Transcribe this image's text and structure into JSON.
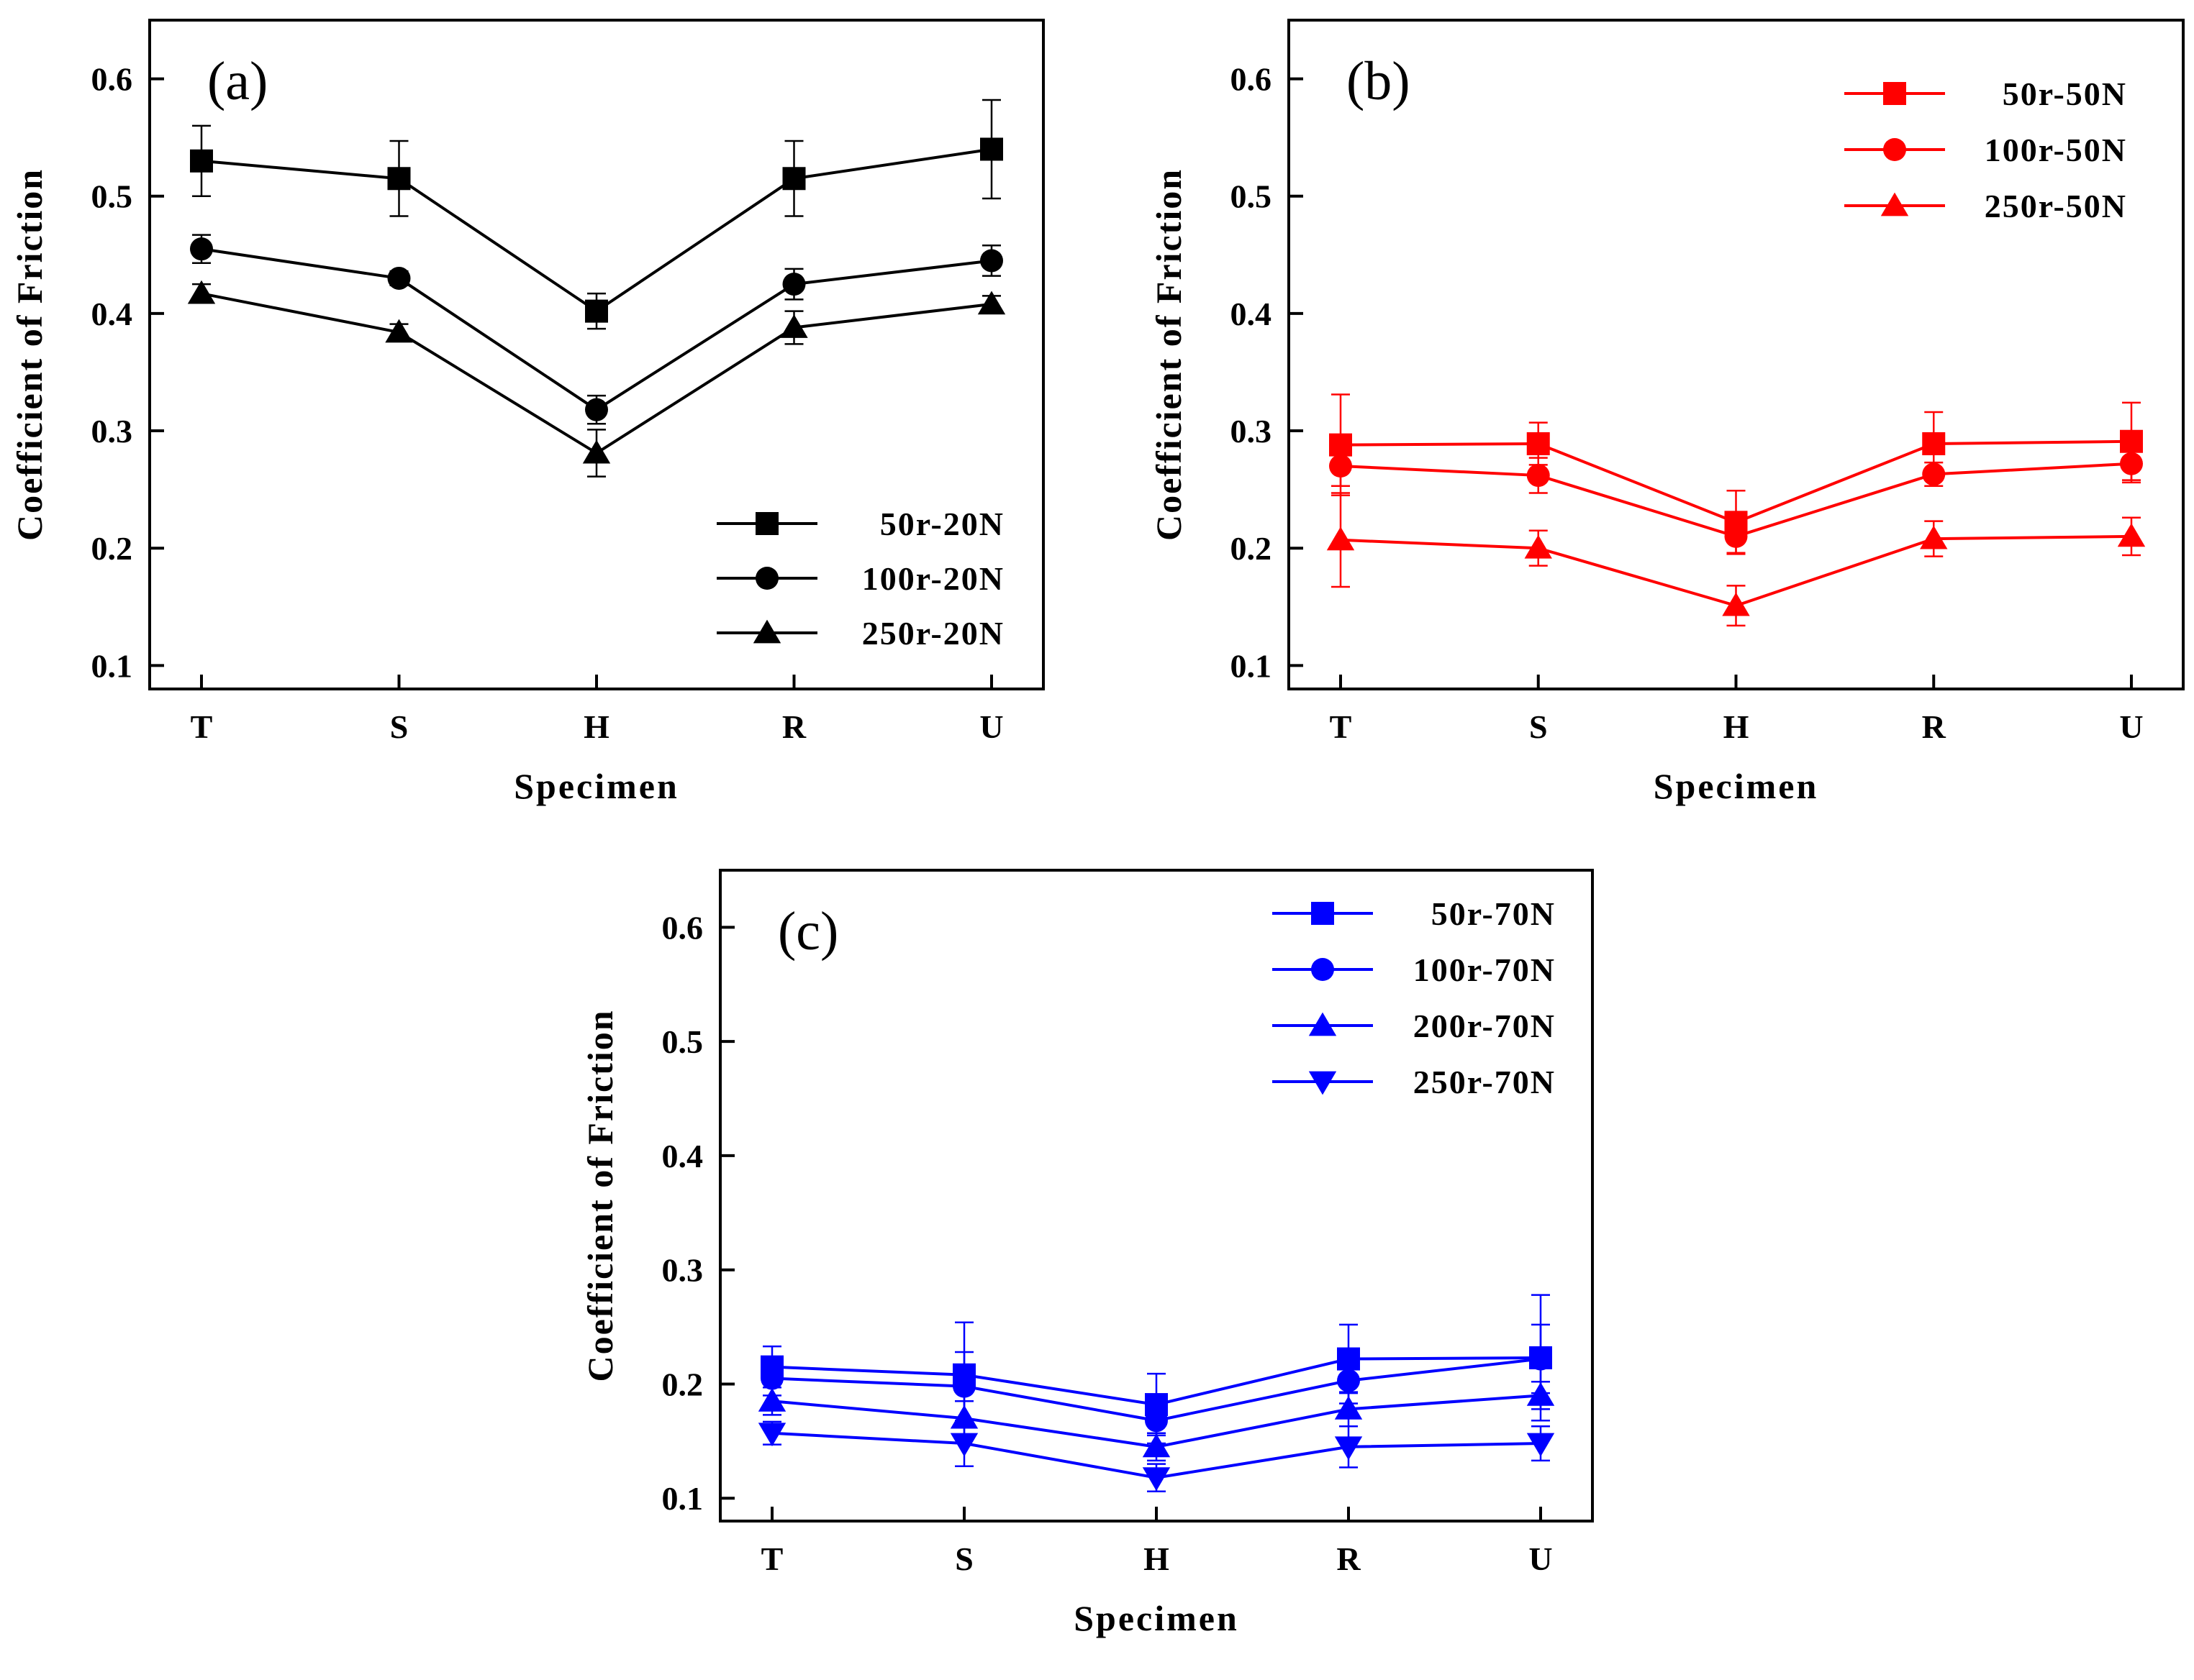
{
  "chart_data": [
    {
      "type": "line",
      "panel": "(a)",
      "xlabel": "Specimen",
      "ylabel": "Coefficient of Friction",
      "categories": [
        "T",
        "S",
        "H",
        "R",
        "U"
      ],
      "yticks": [
        "0.1",
        "0.2",
        "0.3",
        "0.4",
        "0.5",
        "0.6"
      ],
      "ylim": [
        0.08,
        0.65
      ],
      "grid": false,
      "legend_position": "bottom-right",
      "color": "#000000",
      "series": [
        {
          "name": "50r-20N",
          "marker": "square",
          "values": [
            0.53,
            0.515,
            0.402,
            0.515,
            0.54
          ],
          "errors": [
            0.03,
            0.032,
            0.015,
            0.032,
            0.042
          ]
        },
        {
          "name": "100r-20N",
          "marker": "circle",
          "values": [
            0.455,
            0.43,
            0.318,
            0.425,
            0.445
          ],
          "errors": [
            0.012,
            0.006,
            0.012,
            0.013,
            0.013
          ]
        },
        {
          "name": "250r-20N",
          "marker": "triangle-up",
          "values": [
            0.417,
            0.384,
            0.281,
            0.388,
            0.408
          ],
          "errors": [
            0.008,
            0.007,
            0.02,
            0.014,
            0.007
          ]
        }
      ]
    },
    {
      "type": "line",
      "panel": "(b)",
      "xlabel": "Specimen",
      "ylabel": "Coefficient of Friction",
      "categories": [
        "T",
        "S",
        "H",
        "R",
        "U"
      ],
      "yticks": [
        "0.1",
        "0.2",
        "0.3",
        "0.4",
        "0.5",
        "0.6"
      ],
      "ylim": [
        0.08,
        0.65
      ],
      "grid": false,
      "legend_position": "top-right",
      "color": "#ff0000",
      "series": [
        {
          "name": "50r-50N",
          "marker": "square",
          "values": [
            0.288,
            0.289,
            0.222,
            0.289,
            0.291
          ],
          "errors": [
            0.043,
            0.018,
            0.027,
            0.027,
            0.033
          ]
        },
        {
          "name": "100r-50N",
          "marker": "circle",
          "values": [
            0.27,
            0.262,
            0.21,
            0.263,
            0.272
          ],
          "errors": [
            0.017,
            0.015,
            0.014,
            0.01,
            0.016
          ]
        },
        {
          "name": "250r-50N",
          "marker": "triangle-up",
          "values": [
            0.207,
            0.2,
            0.151,
            0.208,
            0.21
          ],
          "errors": [
            0.04,
            0.015,
            0.017,
            0.015,
            0.016
          ]
        }
      ]
    },
    {
      "type": "line",
      "panel": "(c)",
      "xlabel": "Specimen",
      "ylabel": "Coefficient of Friction",
      "categories": [
        "T",
        "S",
        "H",
        "R",
        "U"
      ],
      "yticks": [
        "0.1",
        "0.2",
        "0.3",
        "0.4",
        "0.5",
        "0.6"
      ],
      "ylim": [
        0.08,
        0.65
      ],
      "grid": false,
      "legend_position": "top-right",
      "color": "#0000ff",
      "series": [
        {
          "name": "50r-70N",
          "marker": "square",
          "values": [
            0.215,
            0.208,
            0.182,
            0.222,
            0.223
          ],
          "errors": [
            0.018,
            0.046,
            0.027,
            0.03,
            0.055
          ]
        },
        {
          "name": "100r-70N",
          "marker": "circle",
          "values": [
            0.205,
            0.198,
            0.168,
            0.203,
            0.222
          ],
          "errors": [
            0.015,
            0.03,
            0.02,
            0.02,
            0.03
          ]
        },
        {
          "name": "200r-70N",
          "marker": "triangle-up",
          "values": [
            0.185,
            0.17,
            0.145,
            0.178,
            0.19
          ],
          "errors": [
            0.012,
            0.015,
            0.012,
            0.015,
            0.012
          ]
        },
        {
          "name": "250r-70N",
          "marker": "triangle-down",
          "values": [
            0.157,
            0.148,
            0.118,
            0.145,
            0.148
          ],
          "errors": [
            0.01,
            0.02,
            0.012,
            0.018,
            0.015
          ]
        }
      ]
    }
  ]
}
